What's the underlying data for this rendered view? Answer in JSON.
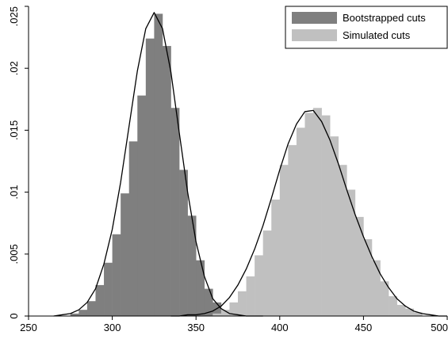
{
  "chart_data": {
    "type": "bar",
    "title": "",
    "xlabel": "",
    "ylabel": "",
    "xlim": [
      250,
      500
    ],
    "ylim": [
      0,
      0.025
    ],
    "x_ticks": [
      250,
      300,
      350,
      400,
      450,
      500
    ],
    "y_ticks": [
      0,
      0.005,
      0.01,
      0.015,
      0.02,
      0.025
    ],
    "x_tick_labels": [
      "250",
      "300",
      "350",
      "400",
      "450",
      "500"
    ],
    "y_tick_labels": [
      "0",
      ".005",
      ".01",
      ".015",
      ".02",
      ".025"
    ],
    "grid": false,
    "legend": "top-right",
    "bin_width": 5,
    "series": [
      {
        "name": "Bootstrapped cuts",
        "color": "#7f7f7f",
        "histogram": {
          "bin_start": [
            275,
            280,
            285,
            290,
            295,
            300,
            305,
            310,
            315,
            320,
            325,
            330,
            335,
            340,
            345,
            350,
            355,
            360,
            365,
            370
          ],
          "density": [
            0.0002,
            0.0005,
            0.0012,
            0.0025,
            0.0043,
            0.0066,
            0.0099,
            0.0141,
            0.0178,
            0.0224,
            0.0244,
            0.0218,
            0.0168,
            0.0118,
            0.0081,
            0.0045,
            0.0022,
            0.0011,
            0.0004,
            0.0001
          ]
        },
        "density_curve": {
          "x": [
            265,
            270,
            275,
            280,
            285,
            290,
            295,
            300,
            305,
            310,
            315,
            320,
            325,
            330,
            335,
            340,
            345,
            350,
            355,
            360,
            365,
            370,
            375,
            380,
            385,
            390
          ],
          "y": [
            0.0,
            0.0001,
            0.0002,
            0.0005,
            0.0011,
            0.0022,
            0.0042,
            0.007,
            0.0108,
            0.0153,
            0.0198,
            0.0232,
            0.0245,
            0.0232,
            0.0197,
            0.0148,
            0.01,
            0.006,
            0.0032,
            0.0014,
            0.0006,
            0.0002,
            0.0001,
            0.0,
            0.0,
            0.0
          ]
        }
      },
      {
        "name": "Simulated cuts",
        "color": "#c0c0c0",
        "histogram": {
          "bin_start": [
            360,
            365,
            370,
            375,
            380,
            385,
            390,
            395,
            400,
            405,
            410,
            415,
            420,
            425,
            430,
            435,
            440,
            445,
            450,
            455,
            460,
            465,
            470,
            475,
            480
          ],
          "density": [
            0.0002,
            0.0005,
            0.0011,
            0.002,
            0.0032,
            0.0049,
            0.0069,
            0.0094,
            0.0122,
            0.0138,
            0.0152,
            0.0164,
            0.0168,
            0.0162,
            0.0145,
            0.0122,
            0.0102,
            0.008,
            0.0062,
            0.0045,
            0.0028,
            0.0016,
            0.0009,
            0.0006,
            0.0003
          ]
        },
        "density_curve": {
          "x": [
            335,
            340,
            345,
            350,
            355,
            360,
            365,
            370,
            375,
            380,
            385,
            390,
            395,
            400,
            405,
            410,
            415,
            420,
            425,
            430,
            435,
            440,
            445,
            450,
            455,
            460,
            465,
            470,
            475,
            480,
            485,
            490,
            495,
            500
          ],
          "y": [
            0.0,
            0.0,
            0.0001,
            0.0001,
            0.0002,
            0.0004,
            0.0008,
            0.0015,
            0.0025,
            0.0038,
            0.0054,
            0.0073,
            0.0095,
            0.0118,
            0.0139,
            0.0155,
            0.0165,
            0.0166,
            0.0157,
            0.0142,
            0.0123,
            0.0102,
            0.0082,
            0.0064,
            0.0048,
            0.0034,
            0.0023,
            0.0014,
            0.0008,
            0.0004,
            0.0002,
            0.0001,
            0.0,
            0.0
          ]
        }
      }
    ]
  }
}
